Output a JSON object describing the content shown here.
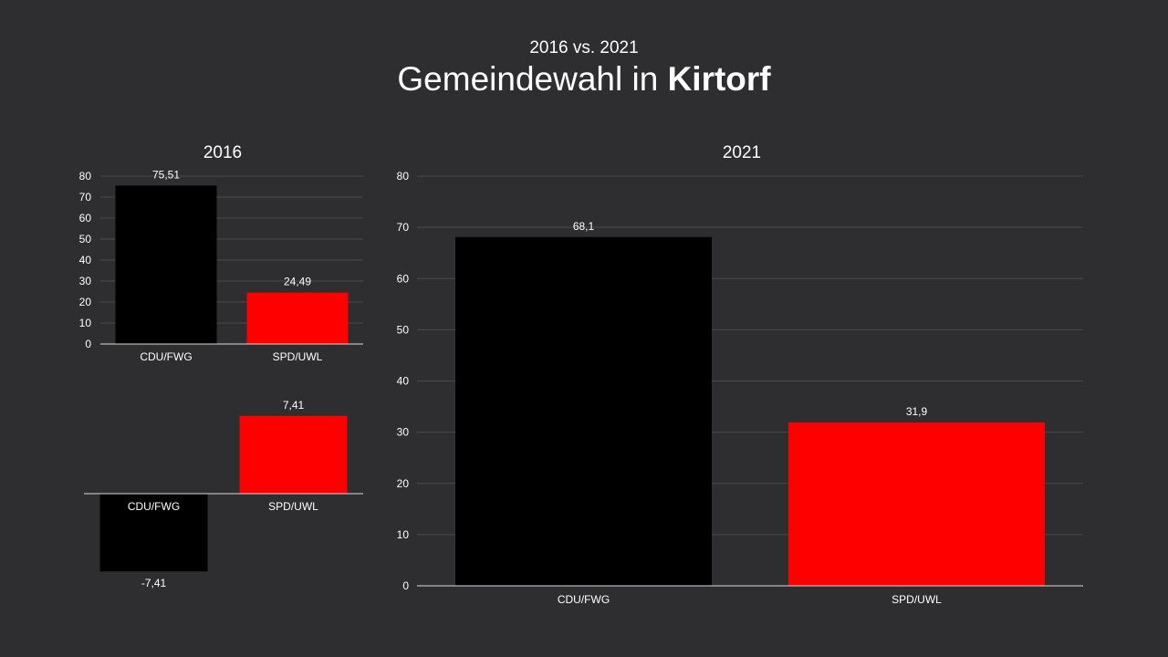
{
  "header": {
    "subtitle": "2016 vs. 2021",
    "title_prefix": "Gemeindewahl in ",
    "title_bold": "Kirtorf"
  },
  "colors": {
    "background": "#2e2e30",
    "cdu_fwg": "#000000",
    "spd_uwl": "#ff0000"
  },
  "chart_data": [
    {
      "id": "chart-2016",
      "type": "bar",
      "title": "2016",
      "categories": [
        "CDU/FWG",
        "SPD/UWL"
      ],
      "values": [
        75.51,
        24.49
      ],
      "data_labels": [
        "75,51",
        "24,49"
      ],
      "colors": [
        "#000000",
        "#ff0000"
      ],
      "ylim": [
        0,
        80
      ],
      "yticks": [
        0,
        10,
        20,
        30,
        40,
        50,
        60,
        70,
        80
      ],
      "grid": true
    },
    {
      "id": "chart-diff",
      "type": "bar",
      "title": "",
      "categories": [
        "CDU/FWG",
        "SPD/UWL"
      ],
      "values": [
        -7.41,
        7.41
      ],
      "data_labels": [
        "-7,41",
        "7,41"
      ],
      "colors": [
        "#000000",
        "#ff0000"
      ],
      "grid": false
    },
    {
      "id": "chart-2021",
      "type": "bar",
      "title": "2021",
      "categories": [
        "CDU/FWG",
        "SPD/UWL"
      ],
      "values": [
        68.1,
        31.9
      ],
      "data_labels": [
        "68,1",
        "31,9"
      ],
      "colors": [
        "#000000",
        "#ff0000"
      ],
      "ylim": [
        0,
        80
      ],
      "yticks": [
        0,
        10,
        20,
        30,
        40,
        50,
        60,
        70,
        80
      ],
      "grid": true
    }
  ]
}
